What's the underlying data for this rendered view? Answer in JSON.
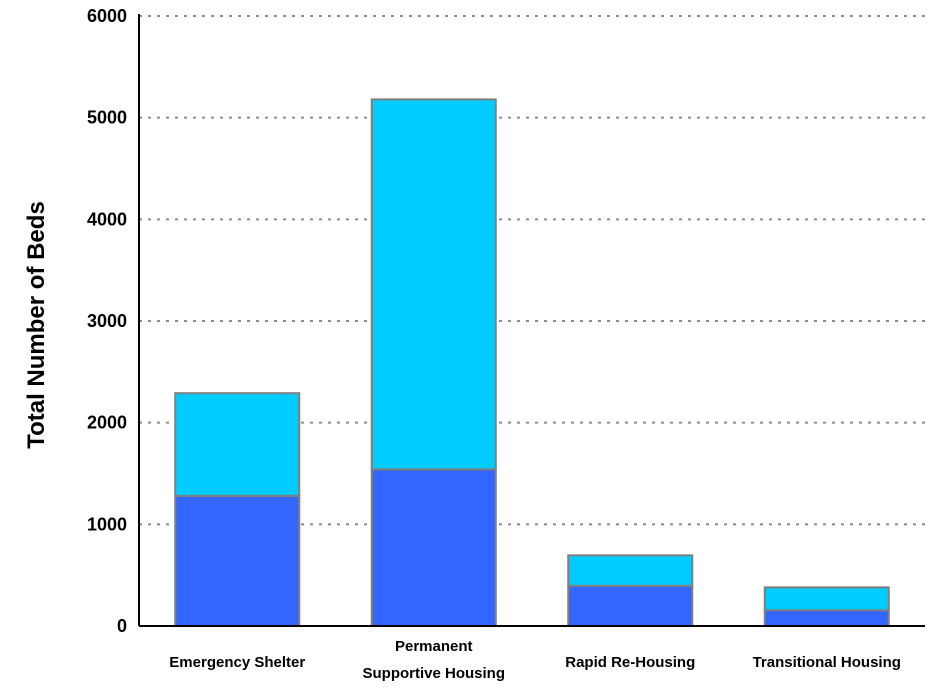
{
  "chart_data": {
    "type": "bar",
    "stacked": true,
    "categories": [
      [
        "Emergency Shelter"
      ],
      [
        "Permanent",
        "Supportive Housing"
      ],
      [
        "Rapid Re-Housing"
      ],
      [
        "Transitional Housing"
      ]
    ],
    "series": [
      {
        "color": "#3366ff",
        "values": [
          1280,
          1540,
          395,
          155
        ]
      },
      {
        "color": "#00ccff",
        "values": [
          1010,
          3640,
          300,
          225
        ]
      }
    ],
    "xlabel": "",
    "ylabel": "Total Number of Beds",
    "ylim": [
      0,
      6000
    ],
    "yticks": [
      0,
      1000,
      2000,
      3000,
      4000,
      5000,
      6000
    ],
    "grid": true,
    "legend": "none"
  }
}
